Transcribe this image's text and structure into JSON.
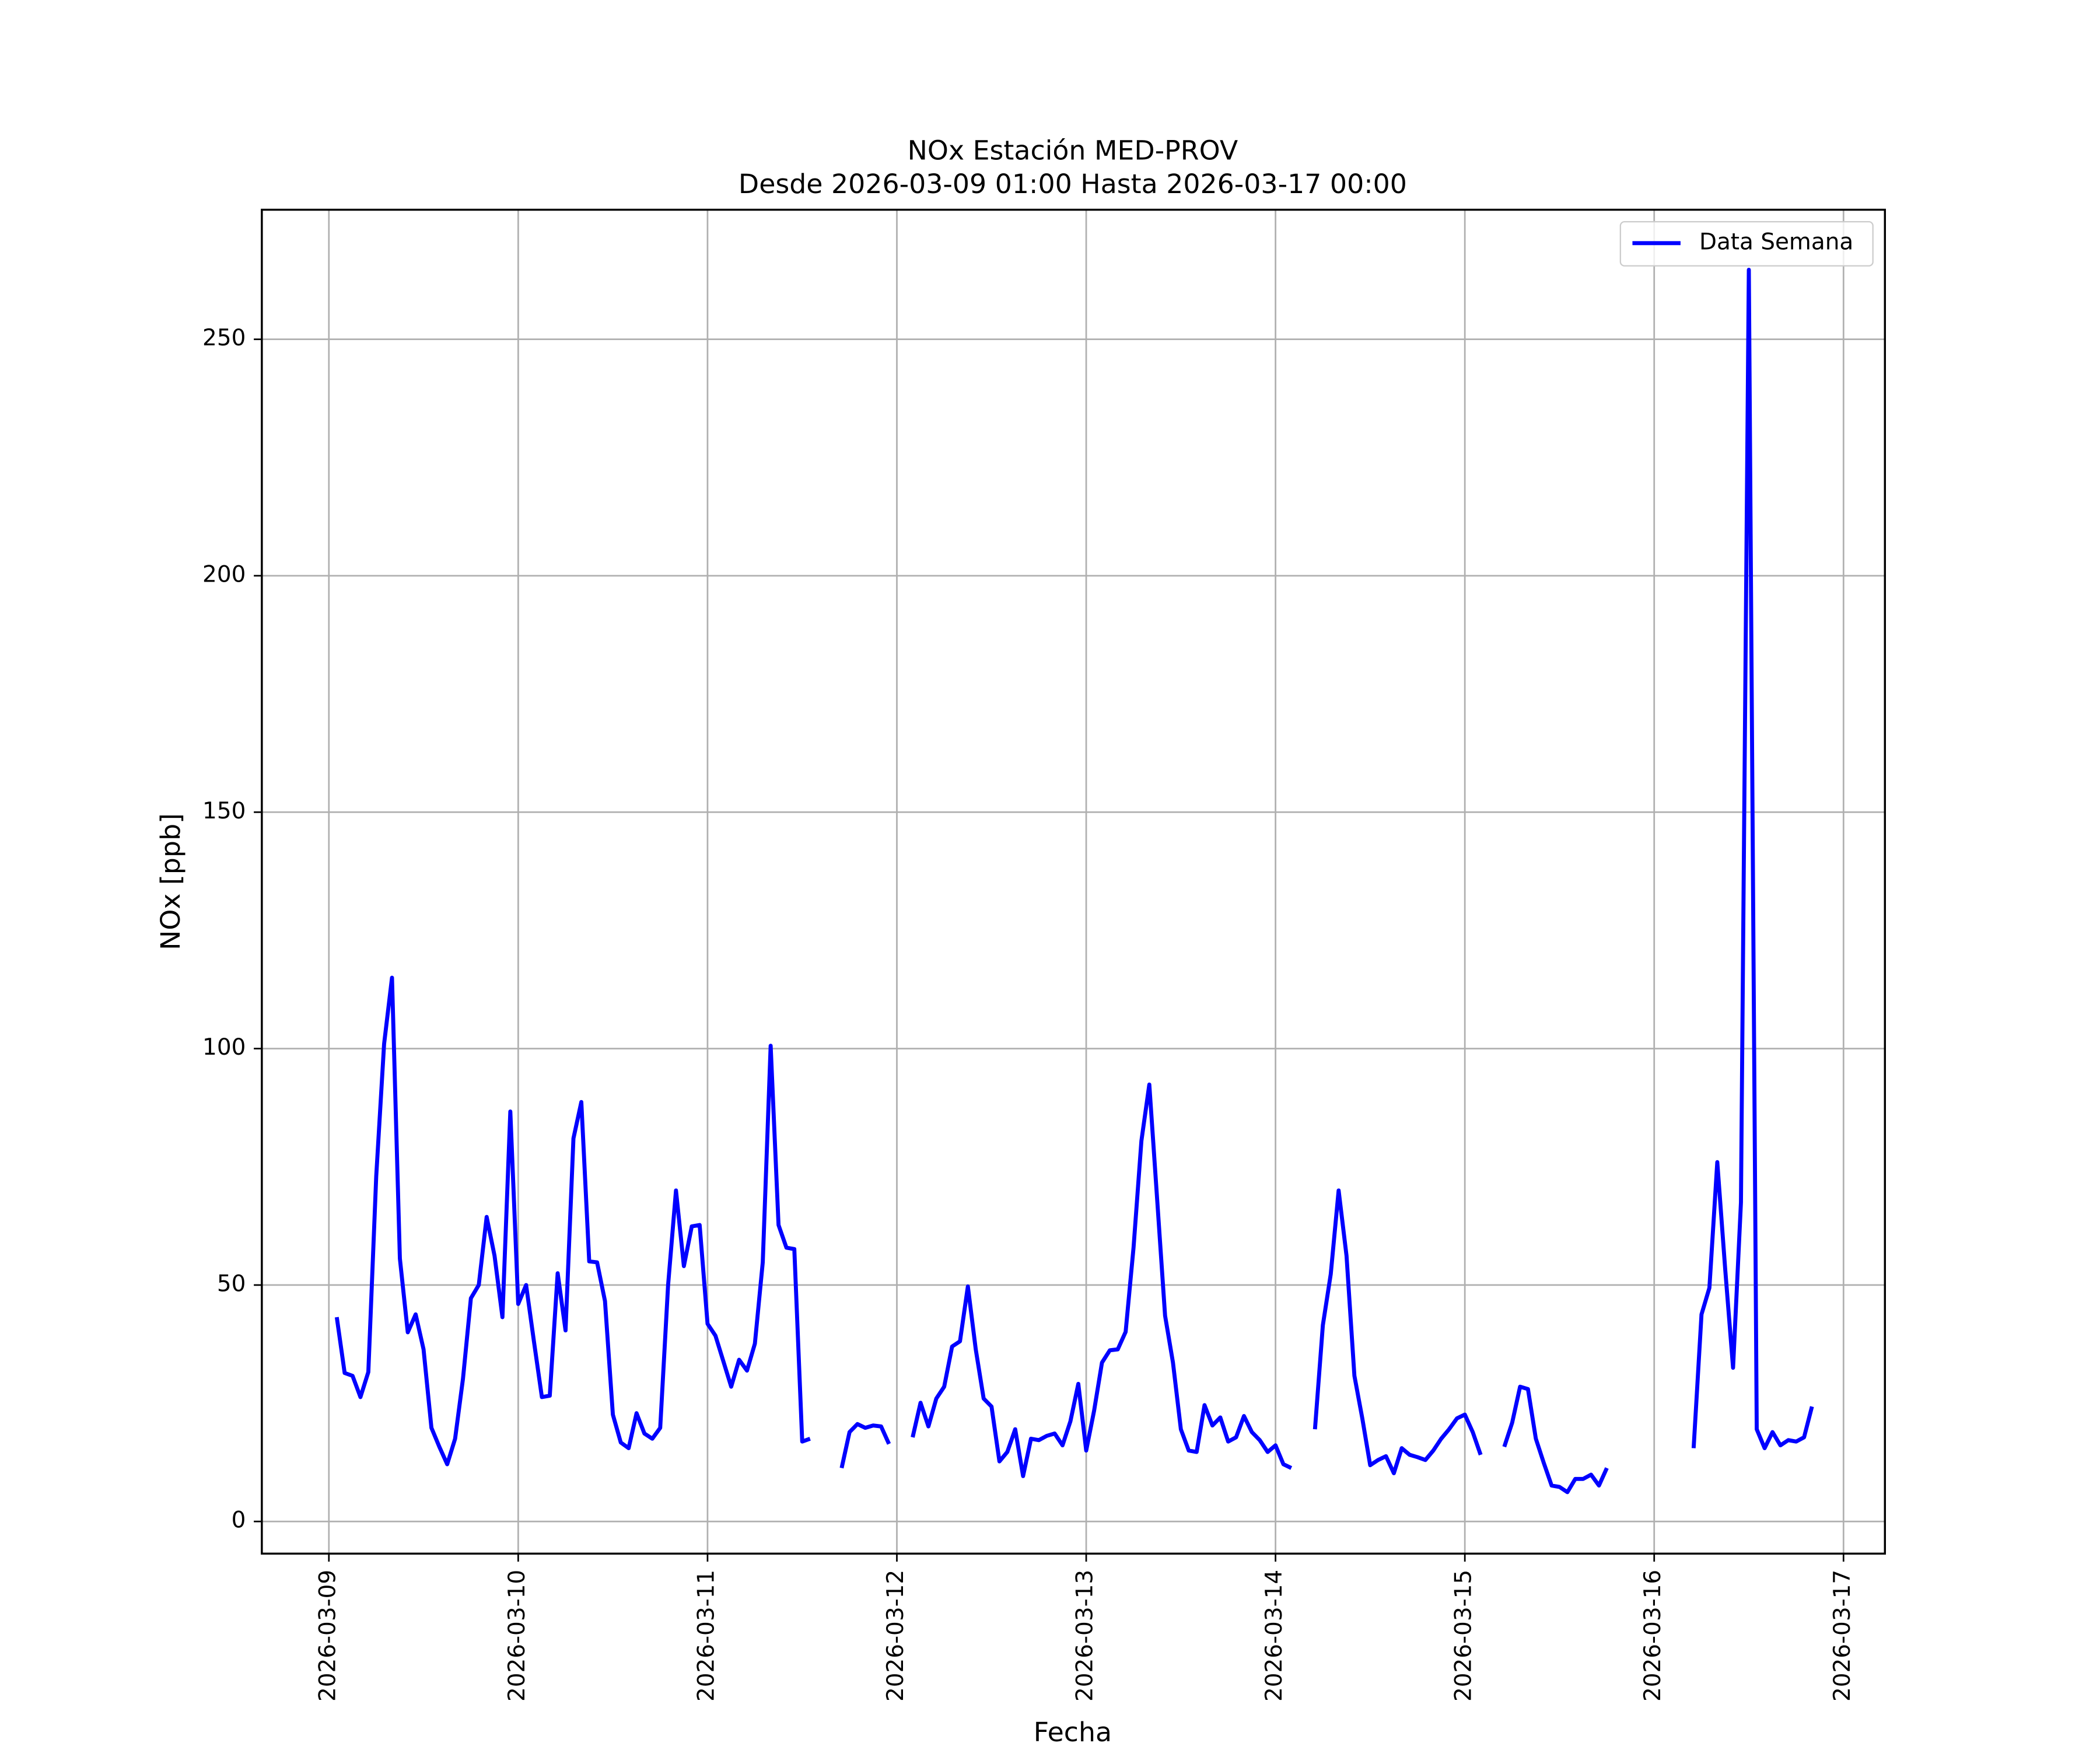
{
  "chart_data": {
    "type": "line",
    "title": "NOx Estación MED-PROV",
    "subtitle": "Desde 2026-03-09 01:00 Hasta 2026-03-17 00:00",
    "xlabel": "Fecha",
    "ylabel": "NOx [ppb]",
    "x": [
      "2026-03-09 01:00",
      "2026-03-09 02:00",
      "2026-03-09 03:00",
      "2026-03-09 04:00",
      "2026-03-09 05:00",
      "2026-03-09 06:00",
      "2026-03-09 07:00",
      "2026-03-09 08:00",
      "2026-03-09 09:00",
      "2026-03-09 10:00",
      "2026-03-09 11:00",
      "2026-03-09 12:00",
      "2026-03-09 13:00",
      "2026-03-09 14:00",
      "2026-03-09 15:00",
      "2026-03-09 16:00",
      "2026-03-09 17:00",
      "2026-03-09 18:00",
      "2026-03-09 19:00",
      "2026-03-09 20:00",
      "2026-03-09 21:00",
      "2026-03-09 22:00",
      "2026-03-09 23:00",
      "2026-03-10 00:00",
      "2026-03-10 01:00",
      "2026-03-10 02:00",
      "2026-03-10 03:00",
      "2026-03-10 04:00",
      "2026-03-10 05:00",
      "2026-03-10 06:00",
      "2026-03-10 07:00",
      "2026-03-10 08:00",
      "2026-03-10 09:00",
      "2026-03-10 10:00",
      "2026-03-10 11:00",
      "2026-03-10 12:00",
      "2026-03-10 13:00",
      "2026-03-10 14:00",
      "2026-03-10 15:00",
      "2026-03-10 16:00",
      "2026-03-10 17:00",
      "2026-03-10 18:00",
      "2026-03-10 19:00",
      "2026-03-10 20:00",
      "2026-03-10 21:00",
      "2026-03-10 22:00",
      "2026-03-10 23:00",
      "2026-03-11 00:00",
      "2026-03-11 01:00",
      "2026-03-11 02:00",
      "2026-03-11 03:00",
      "2026-03-11 04:00",
      "2026-03-11 05:00",
      "2026-03-11 06:00",
      "2026-03-11 07:00",
      "2026-03-11 08:00",
      "2026-03-11 09:00",
      "2026-03-11 10:00",
      "2026-03-11 11:00",
      "2026-03-11 12:00",
      "2026-03-11 13:00",
      "2026-03-11 14:00",
      "2026-03-11 15:00",
      "2026-03-11 16:00",
      "2026-03-11 17:00",
      "2026-03-11 18:00",
      "2026-03-11 19:00",
      "2026-03-11 20:00",
      "2026-03-11 21:00",
      "2026-03-11 22:00",
      "2026-03-11 23:00",
      "2026-03-12 00:00",
      "2026-03-12 01:00",
      "2026-03-12 02:00",
      "2026-03-12 03:00",
      "2026-03-12 04:00",
      "2026-03-12 05:00",
      "2026-03-12 06:00",
      "2026-03-12 07:00",
      "2026-03-12 08:00",
      "2026-03-12 09:00",
      "2026-03-12 10:00",
      "2026-03-12 11:00",
      "2026-03-12 12:00",
      "2026-03-12 13:00",
      "2026-03-12 14:00",
      "2026-03-12 15:00",
      "2026-03-12 16:00",
      "2026-03-12 17:00",
      "2026-03-12 18:00",
      "2026-03-12 19:00",
      "2026-03-12 20:00",
      "2026-03-12 21:00",
      "2026-03-12 22:00",
      "2026-03-12 23:00",
      "2026-03-13 00:00",
      "2026-03-13 01:00",
      "2026-03-13 02:00",
      "2026-03-13 03:00",
      "2026-03-13 04:00",
      "2026-03-13 05:00",
      "2026-03-13 06:00",
      "2026-03-13 07:00",
      "2026-03-13 08:00",
      "2026-03-13 09:00",
      "2026-03-13 10:00",
      "2026-03-13 11:00",
      "2026-03-13 12:00",
      "2026-03-13 13:00",
      "2026-03-13 14:00",
      "2026-03-13 15:00",
      "2026-03-13 16:00",
      "2026-03-13 17:00",
      "2026-03-13 18:00",
      "2026-03-13 19:00",
      "2026-03-13 20:00",
      "2026-03-13 21:00",
      "2026-03-13 22:00",
      "2026-03-13 23:00",
      "2026-03-14 00:00",
      "2026-03-14 01:00",
      "2026-03-14 02:00",
      "2026-03-14 03:00",
      "2026-03-14 04:00",
      "2026-03-14 05:00",
      "2026-03-14 06:00",
      "2026-03-14 07:00",
      "2026-03-14 08:00",
      "2026-03-14 09:00",
      "2026-03-14 10:00",
      "2026-03-14 11:00",
      "2026-03-14 12:00",
      "2026-03-14 13:00",
      "2026-03-14 14:00",
      "2026-03-14 15:00",
      "2026-03-14 16:00",
      "2026-03-14 17:00",
      "2026-03-14 18:00",
      "2026-03-14 19:00",
      "2026-03-14 20:00",
      "2026-03-14 21:00",
      "2026-03-14 22:00",
      "2026-03-14 23:00",
      "2026-03-15 00:00",
      "2026-03-15 01:00",
      "2026-03-15 02:00",
      "2026-03-15 03:00",
      "2026-03-15 04:00",
      "2026-03-15 05:00",
      "2026-03-15 06:00",
      "2026-03-15 07:00",
      "2026-03-15 08:00",
      "2026-03-15 09:00",
      "2026-03-15 10:00",
      "2026-03-15 11:00",
      "2026-03-15 12:00",
      "2026-03-15 13:00",
      "2026-03-15 14:00",
      "2026-03-15 15:00",
      "2026-03-15 16:00",
      "2026-03-15 17:00",
      "2026-03-15 18:00",
      "2026-03-15 19:00",
      "2026-03-15 20:00",
      "2026-03-15 21:00",
      "2026-03-15 22:00",
      "2026-03-15 23:00",
      "2026-03-16 00:00",
      "2026-03-16 01:00",
      "2026-03-16 02:00",
      "2026-03-16 03:00",
      "2026-03-16 04:00",
      "2026-03-16 05:00",
      "2026-03-16 06:00",
      "2026-03-16 07:00",
      "2026-03-16 08:00",
      "2026-03-16 09:00",
      "2026-03-16 10:00",
      "2026-03-16 11:00",
      "2026-03-16 12:00",
      "2026-03-16 13:00",
      "2026-03-16 14:00",
      "2026-03-16 15:00",
      "2026-03-16 16:00",
      "2026-03-16 17:00",
      "2026-03-16 18:00",
      "2026-03-16 19:00",
      "2026-03-16 20:00",
      "2026-03-16 21:00",
      "2026-03-16 22:00",
      "2026-03-16 23:00",
      "2026-03-17 00:00"
    ],
    "series": [
      {
        "name": "Data Semana",
        "color": "#0000ff",
        "values": [
          43.2,
          31.4,
          30.8,
          26.3,
          31.6,
          73,
          101,
          115,
          55.6,
          40,
          43.8,
          36.4,
          19.8,
          15.8,
          12.1,
          17.5,
          30.2,
          47.2,
          50,
          64.4,
          56.2,
          43.2,
          86.7,
          46,
          50,
          38,
          26.3,
          26.6,
          52.5,
          40.4,
          81,
          88.7,
          55,
          54.8,
          46.6,
          22.6,
          16.7,
          15.5,
          22.9,
          18.6,
          17.5,
          19.8,
          50,
          70,
          54,
          62.4,
          62.7,
          41.8,
          39.3,
          33.9,
          28.5,
          34.2,
          31.9,
          37.6,
          54.8,
          100.6,
          62.7,
          57.9,
          57.6,
          16.9,
          17.5,
          null,
          null,
          null,
          11.3,
          18.9,
          20.6,
          19.8,
          20.3,
          20.1,
          16.4,
          null,
          null,
          17.8,
          25.1,
          20.1,
          26,
          28.5,
          37,
          38.1,
          49.7,
          36.4,
          26,
          24.3,
          12.7,
          14.7,
          19.5,
          9.6,
          17.5,
          17.2,
          18.1,
          18.6,
          16.1,
          21.2,
          29.1,
          15,
          23.4,
          33.6,
          36.2,
          36.4,
          40.1,
          57.9,
          80.5,
          92.4,
          68,
          43.5,
          33.6,
          19.5,
          15,
          14.7,
          24.6,
          20.3,
          22,
          16.9,
          17.8,
          22.3,
          18.9,
          17.2,
          14.7,
          16.1,
          12.1,
          11.3,
          null,
          null,
          19.5,
          41.5,
          52.3,
          70,
          56.2,
          30.8,
          21.8,
          11.9,
          13,
          13.8,
          10.2,
          15.5,
          14.1,
          13.6,
          13,
          15,
          17.5,
          19.5,
          21.8,
          22.6,
          18.9,
          14.1,
          null,
          null,
          15.8,
          20.9,
          28.5,
          28,
          17.5,
          12.4,
          7.6,
          7.3,
          6.2,
          9,
          9,
          9.9,
          7.6,
          11.3,
          null,
          null,
          null,
          null,
          null,
          null,
          null,
          null,
          null,
          null,
          15.5,
          43.8,
          49.4,
          76,
          53.4,
          32.5,
          67.5,
          264.7,
          19.5,
          15.5,
          18.9,
          16.1,
          17.2,
          16.9,
          17.8,
          24.3,
          null,
          null,
          null,
          null
        ]
      }
    ],
    "xlim": [
      "2026-03-08 15:30",
      "2026-03-17 05:15"
    ],
    "xticks": [
      "2026-03-09",
      "2026-03-10",
      "2026-03-11",
      "2026-03-12",
      "2026-03-13",
      "2026-03-14",
      "2026-03-15",
      "2026-03-16",
      "2026-03-17"
    ],
    "ylim": [
      -6.8,
      277.4
    ],
    "yticks": [
      0,
      50,
      100,
      150,
      200,
      250
    ],
    "grid": true,
    "legend": "upper right"
  }
}
